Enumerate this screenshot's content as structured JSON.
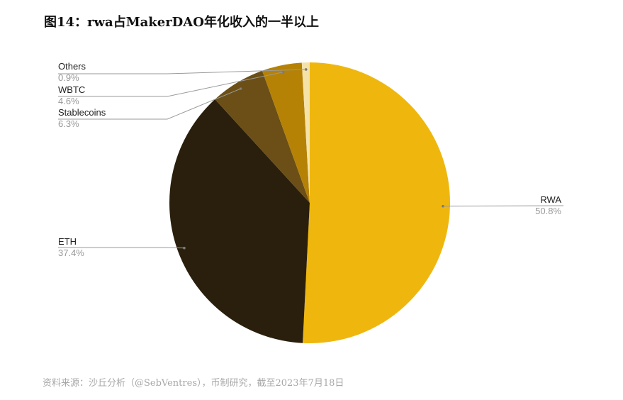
{
  "figure_title": "图14：rwa占MakerDAO年化收入的一半以上",
  "source_note": "资料来源：沙丘分析（@SebVentres），币制研究，截至2023年7月18日",
  "chart_data": {
    "type": "pie",
    "title": "",
    "slices": [
      {
        "label": "RWA",
        "value": 50.8,
        "value_label": "50.8%",
        "color": "#efb70e",
        "label_side": "right"
      },
      {
        "label": "ETH",
        "value": 37.4,
        "value_label": "37.4%",
        "color": "#2a1f0c",
        "label_side": "left"
      },
      {
        "label": "Stablecoins",
        "value": 6.3,
        "value_label": "6.3%",
        "color": "#6b4f16",
        "label_side": "left"
      },
      {
        "label": "WBTC",
        "value": 4.6,
        "value_label": "4.6%",
        "color": "#b58206",
        "label_side": "left"
      },
      {
        "label": "Others",
        "value": 0.9,
        "value_label": "0.9%",
        "color": "#f4e2a8",
        "label_side": "left"
      }
    ],
    "start_angle_deg": 0,
    "direction": "clockwise",
    "legend": "none",
    "label_color": "#222222",
    "value_label_color": "#999999",
    "leader_color": "#9a9a9a"
  }
}
